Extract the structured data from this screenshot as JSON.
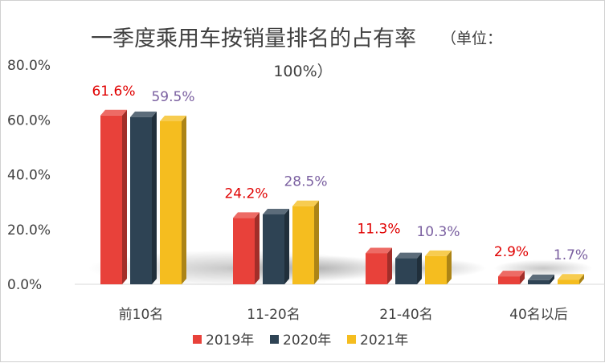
{
  "chart_data": {
    "type": "bar",
    "title": "一季度乘用车按销量排名的占有率",
    "title_unit_open": "（单位：",
    "title_unit_close": "100%）",
    "categories": [
      "前10名",
      "11-20名",
      "21-40名",
      "40名以后"
    ],
    "series": [
      {
        "name": "2019年",
        "values": [
          61.6,
          24.2,
          11.3,
          2.9
        ],
        "color": "#e8413a"
      },
      {
        "name": "2020年",
        "values": [
          61.0,
          25.5,
          9.5,
          1.5
        ],
        "color": "#2e4354"
      },
      {
        "name": "2021年",
        "values": [
          59.5,
          28.5,
          10.3,
          1.7
        ],
        "color": "#f5bd1f"
      }
    ],
    "data_labels": [
      {
        "category": 0,
        "series": 0,
        "text": "61.6%",
        "color": "#e00000"
      },
      {
        "category": 0,
        "series": 2,
        "text": "59.5%",
        "color": "#7a5fa0"
      },
      {
        "category": 1,
        "series": 0,
        "text": "24.2%",
        "color": "#e00000"
      },
      {
        "category": 1,
        "series": 2,
        "text": "28.5%",
        "color": "#7a5fa0"
      },
      {
        "category": 2,
        "series": 0,
        "text": "11.3%",
        "color": "#e00000"
      },
      {
        "category": 2,
        "series": 2,
        "text": "10.3%",
        "color": "#7a5fa0"
      },
      {
        "category": 3,
        "series": 0,
        "text": "2.9%",
        "color": "#e00000"
      },
      {
        "category": 3,
        "series": 2,
        "text": "1.7%",
        "color": "#7a5fa0"
      }
    ],
    "y_ticks": [
      "0.0%",
      "20.0%",
      "40.0%",
      "60.0%",
      "80.0%"
    ],
    "ylim": [
      0,
      80
    ],
    "grid": false,
    "legend_position": "bottom"
  }
}
